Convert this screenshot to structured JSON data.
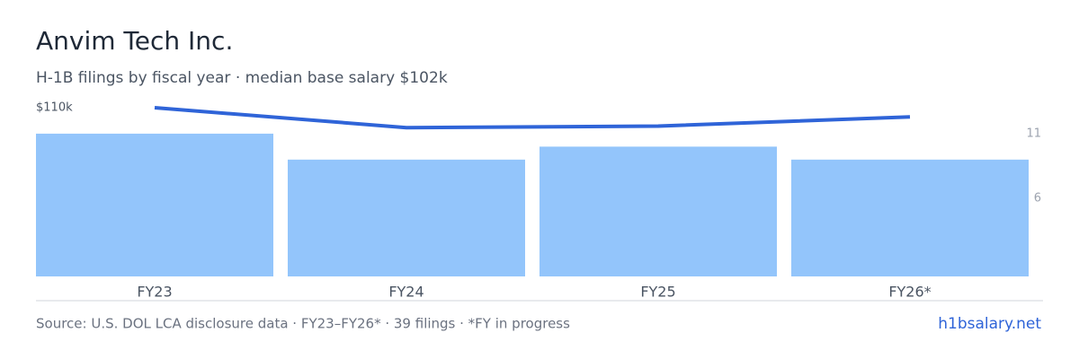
{
  "chart_data": {
    "type": "bar",
    "title": "Anvim Tech Inc.",
    "subtitle": "H-1B filings by fiscal year · median base salary $102k",
    "categories": [
      "FY23",
      "FY24",
      "FY25",
      "FY26*"
    ],
    "series": [
      {
        "type": "bar",
        "axis": "y2",
        "color": "#93c5fb",
        "values": [
          11,
          9,
          10,
          9
        ]
      },
      {
        "type": "line",
        "axis": "y",
        "color": "#2f64d8",
        "values": [
          110000,
          97000,
          98000,
          104000
        ]
      }
    ],
    "ylim": [
      0,
      110000
    ],
    "yticks": [
      {
        "value": 110000,
        "label": "$110k"
      }
    ],
    "y2lim": [
      0,
      13
    ],
    "y2ticks": [
      6,
      11
    ]
  },
  "footer": {
    "source": "Source: U.S. DOL LCA disclosure data · FY23–FY26* · 39 filings · *FY in progress",
    "link": "h1bsalary.net"
  }
}
